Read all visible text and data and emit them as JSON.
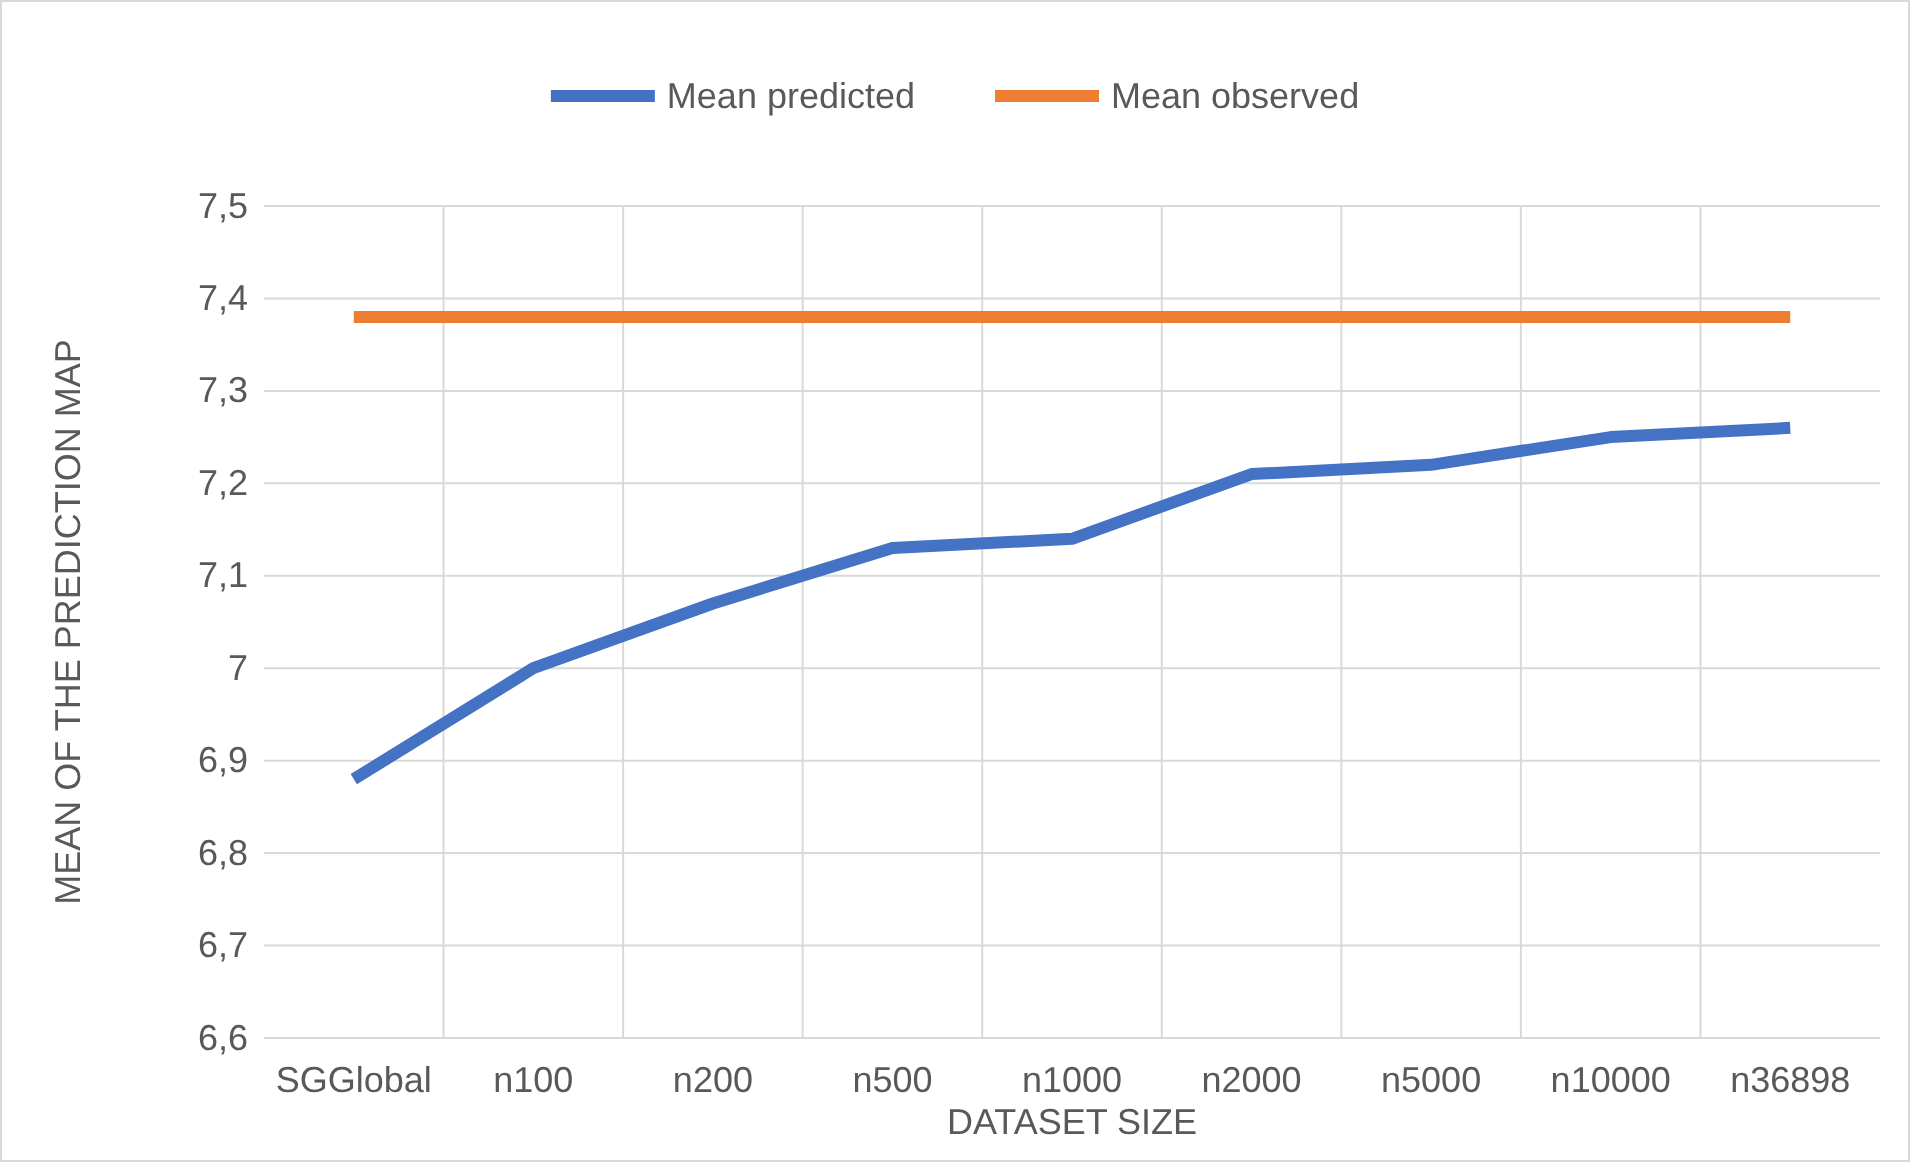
{
  "chart_data": {
    "type": "line",
    "xlabel": "DATASET SIZE",
    "ylabel": "MEAN OF THE PREDICTION MAP",
    "categories": [
      "SGGlobal",
      "n100",
      "n200",
      "n500",
      "n1000",
      "n2000",
      "n5000",
      "n10000",
      "n36898"
    ],
    "series": [
      {
        "name": "Mean predicted",
        "color": "#4472c4",
        "values": [
          6.88,
          7.0,
          7.07,
          7.13,
          7.14,
          7.21,
          7.22,
          7.25,
          7.26
        ]
      },
      {
        "name": "Mean observed",
        "color": "#ed7d31",
        "values": [
          7.38,
          7.38,
          7.38,
          7.38,
          7.38,
          7.38,
          7.38,
          7.38,
          7.38
        ]
      }
    ],
    "ylim": [
      6.6,
      7.5
    ],
    "yticks": [
      {
        "value": 6.6,
        "label": "6,6"
      },
      {
        "value": 6.7,
        "label": "6,7"
      },
      {
        "value": 6.8,
        "label": "6,8"
      },
      {
        "value": 6.9,
        "label": "6,9"
      },
      {
        "value": 7,
        "label": "7"
      },
      {
        "value": 7.1,
        "label": "7,1"
      },
      {
        "value": 7.2,
        "label": "7,2"
      },
      {
        "value": 7.3,
        "label": "7,3"
      },
      {
        "value": 7.4,
        "label": "7,4"
      },
      {
        "value": 7.5,
        "label": "7,5"
      }
    ],
    "grid": true,
    "legend": "top",
    "marker": "none",
    "line_style": "solid"
  }
}
